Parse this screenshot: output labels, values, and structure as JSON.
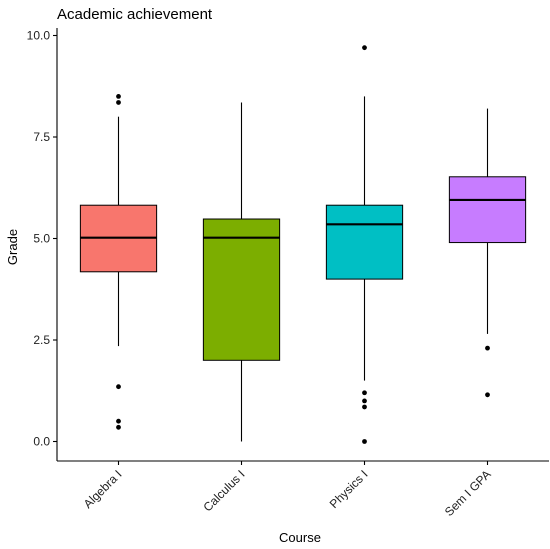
{
  "chart_data": {
    "type": "boxplot",
    "title": "Academic achievement",
    "xlabel": "Course",
    "ylabel": "Grade",
    "ylim": [
      -0.45,
      10.2
    ],
    "y_ticks": [
      0.0,
      2.5,
      5.0,
      7.5,
      10.0
    ],
    "y_tick_labels": [
      "0.0",
      "2.5",
      "5.0",
      "7.5",
      "10.0"
    ],
    "grid": false,
    "legend": "none",
    "categories": [
      "Algebra I",
      "Calculus I",
      "Physics I",
      "Sem I GPA"
    ],
    "boxes": [
      {
        "category": "Algebra I",
        "color": "#F8766D",
        "lower_whisker": 2.35,
        "q1": 4.18,
        "median": 5.02,
        "q3": 5.82,
        "upper_whisker": 8.0,
        "outliers": [
          8.5,
          8.35,
          1.35,
          0.5,
          0.35
        ]
      },
      {
        "category": "Calculus I",
        "color": "#7CAE00",
        "lower_whisker": 0.0,
        "q1": 2.0,
        "median": 5.02,
        "q3": 5.48,
        "upper_whisker": 8.35,
        "outliers": []
      },
      {
        "category": "Physics I",
        "color": "#00BFC4",
        "lower_whisker": 1.5,
        "q1": 4.0,
        "median": 5.35,
        "q3": 5.82,
        "upper_whisker": 8.5,
        "outliers": [
          9.7,
          1.2,
          1.0,
          0.85,
          0.0
        ]
      },
      {
        "category": "Sem I GPA",
        "color": "#C77CFF",
        "lower_whisker": 2.65,
        "q1": 4.9,
        "median": 5.95,
        "q3": 6.52,
        "upper_whisker": 8.2,
        "outliers": [
          2.3,
          1.15
        ]
      }
    ]
  }
}
